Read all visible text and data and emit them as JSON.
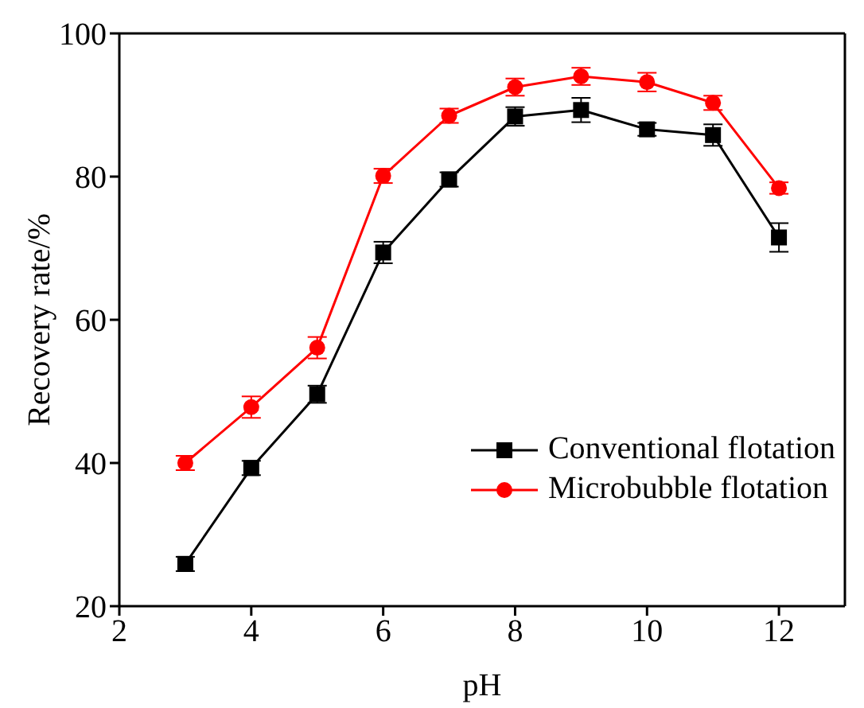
{
  "chart_data": {
    "type": "line",
    "xlabel": "pH",
    "ylabel": "Recovery rate/%",
    "x": [
      3,
      4,
      5,
      6,
      7,
      8,
      9,
      10,
      11,
      12
    ],
    "series": [
      {
        "name": "Conventional flotation",
        "color": "#000000",
        "marker": "square",
        "values": [
          25.9,
          39.3,
          49.6,
          69.4,
          79.6,
          88.4,
          89.3,
          86.6,
          85.8,
          71.5
        ],
        "errors": [
          1,
          1,
          1.2,
          1.5,
          1,
          1.3,
          1.7,
          0.9,
          1.5,
          2
        ]
      },
      {
        "name": "Microbubble flotation",
        "color": "#ff0000",
        "marker": "circle",
        "values": [
          40,
          47.8,
          56.1,
          80.1,
          88.5,
          92.5,
          94,
          93.2,
          90.3,
          78.4
        ],
        "errors": [
          1,
          1.5,
          1.5,
          1,
          1,
          1.2,
          1.2,
          1.3,
          1,
          0.8
        ]
      }
    ],
    "xlim": [
      2,
      13
    ],
    "xticks": [
      2,
      4,
      6,
      8,
      10,
      12
    ],
    "ylim": [
      20,
      100
    ],
    "yticks": [
      20,
      40,
      60,
      80,
      100
    ],
    "grid": false,
    "legend": "bottom right"
  }
}
